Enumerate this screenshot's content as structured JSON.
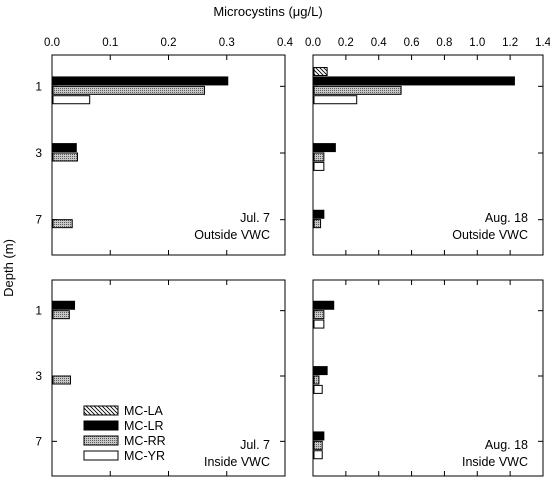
{
  "figure": {
    "top_axis_title": "Microcystins (μg/L)",
    "y_axis_title": "Depth (m)"
  },
  "legend": {
    "items": [
      {
        "label": "MC-LA",
        "pattern": "hatch"
      },
      {
        "label": "MC-LR",
        "pattern": "solid"
      },
      {
        "label": "MC-RR",
        "pattern": "dots"
      },
      {
        "label": "MC-YR",
        "pattern": "white"
      }
    ]
  },
  "chart_data": [
    {
      "type": "bar",
      "orientation": "horizontal",
      "panel": "top-left",
      "annotation": [
        "Jul. 7",
        "Outside VWC"
      ],
      "categories": [
        "1",
        "3",
        "7"
      ],
      "xlim": [
        0,
        0.4
      ],
      "xticks": [
        "0.0",
        "0.1",
        "0.2",
        "0.3",
        "0.4"
      ],
      "series": [
        {
          "name": "MC-LA",
          "values": [
            0,
            0,
            0
          ]
        },
        {
          "name": "MC-LR",
          "values": [
            0.3,
            0.04,
            0
          ]
        },
        {
          "name": "MC-RR",
          "values": [
            0.26,
            0.042,
            0.033
          ]
        },
        {
          "name": "MC-YR",
          "values": [
            0.063,
            0,
            0
          ]
        }
      ]
    },
    {
      "type": "bar",
      "orientation": "horizontal",
      "panel": "top-right",
      "annotation": [
        "Aug. 18",
        "Outside VWC"
      ],
      "categories": [
        "1",
        "3",
        "7"
      ],
      "xlim": [
        0,
        1.4
      ],
      "xticks": [
        "0.0",
        "0.2",
        "0.4",
        "0.6",
        "0.8",
        "1.0",
        "1.2",
        "1.4"
      ],
      "series": [
        {
          "name": "MC-LA",
          "values": [
            0.08,
            0,
            0
          ]
        },
        {
          "name": "MC-LR",
          "values": [
            1.22,
            0.13,
            0.06
          ]
        },
        {
          "name": "MC-RR",
          "values": [
            0.53,
            0.06,
            0.04
          ]
        },
        {
          "name": "MC-YR",
          "values": [
            0.26,
            0.06,
            0
          ]
        }
      ]
    },
    {
      "type": "bar",
      "orientation": "horizontal",
      "panel": "bottom-left",
      "annotation": [
        "Jul. 7",
        "Inside VWC"
      ],
      "categories": [
        "1",
        "3",
        "7"
      ],
      "xlim": [
        0,
        0.4
      ],
      "series": [
        {
          "name": "MC-LA",
          "values": [
            0,
            0,
            0
          ]
        },
        {
          "name": "MC-LR",
          "values": [
            0.037,
            0,
            0
          ]
        },
        {
          "name": "MC-RR",
          "values": [
            0.028,
            0.03,
            0
          ]
        },
        {
          "name": "MC-YR",
          "values": [
            0,
            0,
            0
          ]
        }
      ]
    },
    {
      "type": "bar",
      "orientation": "horizontal",
      "panel": "bottom-right",
      "annotation": [
        "Aug. 18",
        "Inside VWC"
      ],
      "categories": [
        "1",
        "3",
        "7"
      ],
      "xlim": [
        0,
        1.4
      ],
      "series": [
        {
          "name": "MC-LA",
          "values": [
            0,
            0,
            0
          ]
        },
        {
          "name": "MC-LR",
          "values": [
            0.12,
            0.08,
            0.06
          ]
        },
        {
          "name": "MC-RR",
          "values": [
            0.06,
            0.03,
            0.05
          ]
        },
        {
          "name": "MC-YR",
          "values": [
            0.06,
            0.05,
            0.05
          ]
        }
      ]
    }
  ]
}
